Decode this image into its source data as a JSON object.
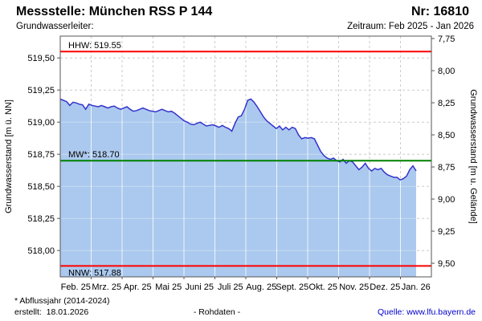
{
  "header": {
    "title": "Messstelle: München RSS P 144",
    "station_number": "Nr: 16810",
    "aquifer_label": "Grundwasserleiter:",
    "period_label": "Zeitraum: Feb 2025 - Jan 2026"
  },
  "footer": {
    "note": "* Abflussjahr (2014-2024)",
    "created": "erstellt:  18.01.2026",
    "data_type": "- Rohdaten -",
    "source": "Quelle: www.lfu.bayern.de"
  },
  "chart_data": {
    "type": "area",
    "title": "",
    "ylabel_left": "Grundwasserstand [m ü. NN]",
    "ylabel_right": "Grundwasserstand [m u. Gelände]",
    "x_categories": [
      "Feb. 25",
      "Mrz. 25",
      "Apr. 25",
      "Mai 25",
      "Juni 25",
      "Juli 25",
      "Aug. 25",
      "Sept. 25",
      "Okt. 25",
      "Nov. 25",
      "Dez. 25",
      "Jan. 26"
    ],
    "ylim_left": [
      517.795,
      519.67
    ],
    "ylim_right": [
      7.731,
      9.606
    ],
    "grid": true,
    "left_ticks": [
      {
        "value": 519.5,
        "label": "519,50"
      },
      {
        "value": 519.25,
        "label": "519,25"
      },
      {
        "value": 519.0,
        "label": "519,00"
      },
      {
        "value": 518.75,
        "label": "518,75"
      },
      {
        "value": 518.5,
        "label": "518,50"
      },
      {
        "value": 518.25,
        "label": "518,25"
      },
      {
        "value": 518.0,
        "label": "518,00"
      }
    ],
    "right_ticks": [
      {
        "value": 7.75,
        "label": "7,75"
      },
      {
        "value": 8.0,
        "label": "8,00"
      },
      {
        "value": 8.25,
        "label": "8,25"
      },
      {
        "value": 8.5,
        "label": "8,50"
      },
      {
        "value": 8.75,
        "label": "8,75"
      },
      {
        "value": 9.0,
        "label": "9,00"
      },
      {
        "value": 9.25,
        "label": "9,25"
      },
      {
        "value": 9.5,
        "label": "9,50"
      }
    ],
    "reference_lines": [
      {
        "name": "HHW",
        "label": "HHW: 519.55",
        "value": 519.55,
        "color": "#ff0000",
        "label_side": "above"
      },
      {
        "name": "MW",
        "label": "MW*: 518.70",
        "value": 518.7,
        "color": "#008000",
        "label_side": "above"
      },
      {
        "name": "NNW",
        "label": "NNW: 517.88",
        "value": 517.88,
        "color": "#ff0000",
        "label_side": "below"
      }
    ],
    "series": [
      {
        "name": "Grundwasserstand (Rohdaten)",
        "line_color": "#3333cc",
        "fill_color": "#abc9ee",
        "x_start_month": 0,
        "x_end_month": 11.506,
        "values": [
          519.18,
          519.17,
          519.16,
          519.13,
          519.155,
          519.15,
          519.14,
          519.135,
          519.1,
          519.14,
          519.13,
          519.125,
          519.12,
          519.13,
          519.12,
          519.11,
          519.12,
          519.125,
          519.11,
          519.1,
          519.11,
          519.12,
          519.1,
          519.085,
          519.09,
          519.1,
          519.11,
          519.1,
          519.09,
          519.085,
          519.08,
          519.09,
          519.1,
          519.09,
          519.08,
          519.085,
          519.07,
          519.05,
          519.03,
          519.01,
          519.0,
          518.985,
          518.98,
          518.99,
          519.0,
          518.985,
          518.97,
          518.975,
          518.98,
          518.97,
          518.96,
          518.975,
          518.96,
          518.95,
          518.93,
          518.99,
          519.04,
          519.05,
          519.1,
          519.17,
          519.18,
          519.155,
          519.12,
          519.08,
          519.04,
          519.01,
          518.99,
          518.97,
          518.95,
          518.97,
          518.94,
          518.96,
          518.94,
          518.96,
          518.95,
          518.9,
          518.87,
          518.88,
          518.875,
          518.88,
          518.87,
          518.82,
          518.77,
          518.74,
          518.72,
          518.71,
          518.72,
          518.7,
          518.69,
          518.71,
          518.68,
          518.7,
          518.69,
          518.66,
          518.63,
          518.65,
          518.68,
          518.64,
          518.62,
          518.64,
          518.63,
          518.64,
          518.61,
          518.59,
          518.58,
          518.57,
          518.57,
          518.55,
          518.56,
          518.58,
          518.63,
          518.66,
          518.62
        ]
      }
    ],
    "colors": {
      "grid": "#cccccc",
      "plot_border": "#555555",
      "tick_text": "#000000",
      "background": "#ffffff"
    }
  }
}
